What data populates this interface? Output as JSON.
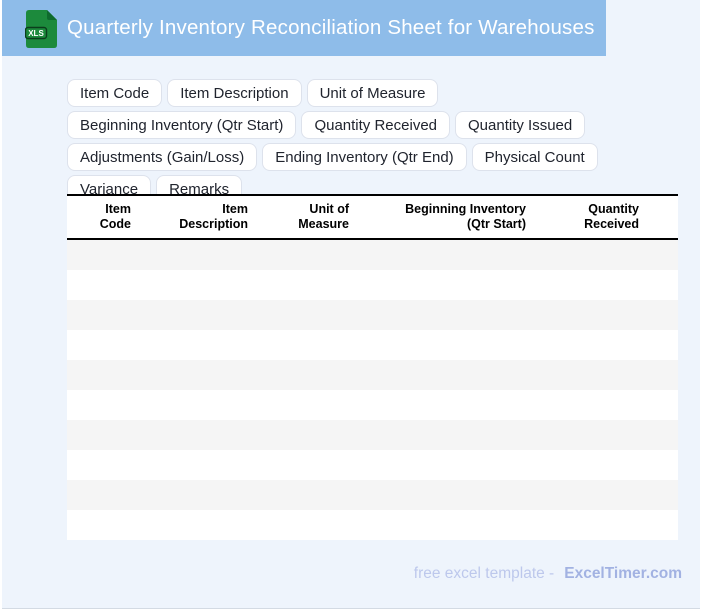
{
  "header": {
    "title": "Quarterly Inventory Reconciliation Sheet for Warehouses",
    "icon_label": "XLS"
  },
  "tags": [
    "Item Code",
    "Item Description",
    "Unit of Measure",
    "Beginning Inventory (Qtr Start)",
    "Quantity Received",
    "Quantity Issued",
    "Adjustments (Gain/Loss)",
    "Ending Inventory (Qtr End)",
    "Physical Count",
    "Variance",
    "Remarks"
  ],
  "table": {
    "columns": [
      "Item\nCode",
      "Item\nDescription",
      "Unit of\nMeasure",
      "Beginning Inventory\n(Qtr Start)",
      "Quantity\nReceived"
    ],
    "empty_row_count": 10
  },
  "footer": {
    "text": "free excel template -",
    "brand": "ExcelTimer.com"
  },
  "colors": {
    "banner_blue": "#8ebce9",
    "page_background": "#eef4fc",
    "row_stripe_gray": "#f5f5f5",
    "icon_green": "#1c8a3c",
    "icon_fold_green": "#0e6b2d",
    "footer_text": "#bdc8ec",
    "footer_brand": "#a2b2e2",
    "header_border_black": "#000000"
  }
}
